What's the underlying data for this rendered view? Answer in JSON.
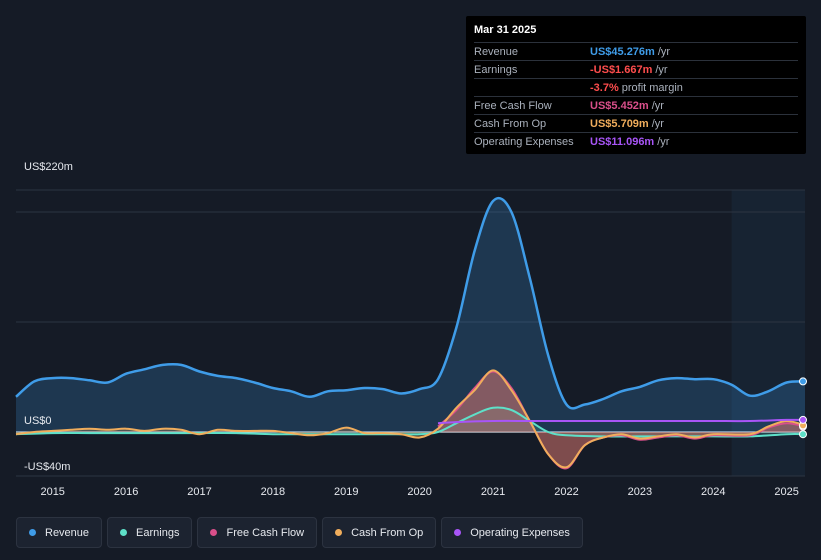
{
  "tooltip": {
    "date": "Mar 31 2025",
    "rows": [
      {
        "name": "Revenue",
        "value": "US$45.276m",
        "unit": "/yr",
        "color": "#3f9ce8"
      },
      {
        "name": "Earnings",
        "value": "-US$1.667m",
        "unit": "/yr",
        "color": "#ff4d4d"
      },
      {
        "name": "",
        "value": "-3.7%",
        "unit": "profit margin",
        "color": "#ff4d4d"
      },
      {
        "name": "Free Cash Flow",
        "value": "US$5.452m",
        "unit": "/yr",
        "color": "#d94f8a"
      },
      {
        "name": "Cash From Op",
        "value": "US$5.709m",
        "unit": "/yr",
        "color": "#f0ad5c"
      },
      {
        "name": "Operating Expenses",
        "value": "US$11.096m",
        "unit": "/yr",
        "color": "#a855f7"
      }
    ]
  },
  "chart_data": {
    "type": "area",
    "title": "",
    "xlabel": "",
    "ylabel": "",
    "y_top_label": "US$220m",
    "y_zero_label": "US$0",
    "y_bottom_label": "-US$40m",
    "ylim": [
      -40,
      220
    ],
    "xlim": [
      2014.5,
      2025.25
    ],
    "x_ticks": [
      "2015",
      "2016",
      "2017",
      "2018",
      "2019",
      "2020",
      "2021",
      "2022",
      "2023",
      "2024",
      "2025"
    ],
    "forecast_start": 2024.25,
    "series": [
      {
        "name": "Revenue",
        "color": "#3f9ce8",
        "points": [
          [
            2014.5,
            32
          ],
          [
            2014.75,
            46
          ],
          [
            2015,
            49
          ],
          [
            2015.25,
            49
          ],
          [
            2015.5,
            47
          ],
          [
            2015.75,
            45
          ],
          [
            2016,
            53
          ],
          [
            2016.25,
            57
          ],
          [
            2016.5,
            61
          ],
          [
            2016.75,
            61
          ],
          [
            2017,
            55
          ],
          [
            2017.25,
            51
          ],
          [
            2017.5,
            49
          ],
          [
            2017.75,
            45
          ],
          [
            2018,
            40
          ],
          [
            2018.25,
            37
          ],
          [
            2018.5,
            32
          ],
          [
            2018.75,
            37
          ],
          [
            2019,
            38
          ],
          [
            2019.25,
            40
          ],
          [
            2019.5,
            39
          ],
          [
            2019.75,
            35
          ],
          [
            2020,
            39
          ],
          [
            2020.25,
            48
          ],
          [
            2020.5,
            95
          ],
          [
            2020.75,
            165
          ],
          [
            2021,
            210
          ],
          [
            2021.25,
            200
          ],
          [
            2021.5,
            140
          ],
          [
            2021.75,
            70
          ],
          [
            2022,
            25
          ],
          [
            2022.25,
            25
          ],
          [
            2022.5,
            30
          ],
          [
            2022.75,
            37
          ],
          [
            2023,
            41
          ],
          [
            2023.25,
            47
          ],
          [
            2023.5,
            49
          ],
          [
            2023.75,
            48
          ],
          [
            2024,
            48
          ],
          [
            2024.25,
            43
          ],
          [
            2024.5,
            33
          ],
          [
            2024.75,
            37
          ],
          [
            2025,
            45
          ],
          [
            2025.25,
            46
          ]
        ]
      },
      {
        "name": "Earnings",
        "color": "#5ee0c8",
        "points": [
          [
            2014.5,
            -2
          ],
          [
            2015,
            -1
          ],
          [
            2015.5,
            -1
          ],
          [
            2016,
            -1
          ],
          [
            2016.5,
            -1
          ],
          [
            2017,
            -1
          ],
          [
            2017.5,
            -1
          ],
          [
            2018,
            -2
          ],
          [
            2018.5,
            -2
          ],
          [
            2019,
            -2
          ],
          [
            2019.5,
            -2
          ],
          [
            2020,
            -2
          ],
          [
            2020.25,
            0
          ],
          [
            2020.5,
            8
          ],
          [
            2020.75,
            16
          ],
          [
            2021,
            22
          ],
          [
            2021.25,
            20
          ],
          [
            2021.5,
            10
          ],
          [
            2021.75,
            0
          ],
          [
            2022,
            -3
          ],
          [
            2022.5,
            -4
          ],
          [
            2023,
            -4
          ],
          [
            2023.5,
            -4
          ],
          [
            2024,
            -4
          ],
          [
            2024.5,
            -4
          ],
          [
            2025,
            -2
          ],
          [
            2025.25,
            -2
          ]
        ]
      },
      {
        "name": "Free Cash Flow",
        "color": "#d94f8a",
        "points": [
          [
            2020.25,
            5
          ],
          [
            2020.5,
            20
          ],
          [
            2020.75,
            40
          ],
          [
            2021,
            55
          ],
          [
            2021.25,
            40
          ],
          [
            2021.5,
            10
          ],
          [
            2021.75,
            -20
          ],
          [
            2022,
            -33
          ],
          [
            2022.25,
            -12
          ],
          [
            2022.5,
            -5
          ],
          [
            2022.75,
            -3
          ],
          [
            2023,
            -7
          ],
          [
            2023.25,
            -5
          ],
          [
            2023.5,
            -3
          ],
          [
            2023.75,
            -6
          ],
          [
            2024,
            -3
          ],
          [
            2024.5,
            -3
          ],
          [
            2024.75,
            4
          ],
          [
            2025,
            8
          ],
          [
            2025.25,
            5
          ]
        ]
      },
      {
        "name": "Cash From Op",
        "color": "#f0ad5c",
        "points": [
          [
            2014.5,
            -2
          ],
          [
            2014.75,
            0
          ],
          [
            2015,
            1
          ],
          [
            2015.25,
            2
          ],
          [
            2015.5,
            3
          ],
          [
            2015.75,
            2
          ],
          [
            2016,
            3
          ],
          [
            2016.25,
            1
          ],
          [
            2016.5,
            3
          ],
          [
            2016.75,
            2
          ],
          [
            2017,
            -2
          ],
          [
            2017.25,
            2
          ],
          [
            2017.5,
            1
          ],
          [
            2017.75,
            1
          ],
          [
            2018,
            1
          ],
          [
            2018.25,
            -1
          ],
          [
            2018.5,
            -3
          ],
          [
            2018.75,
            -1
          ],
          [
            2019,
            4
          ],
          [
            2019.25,
            -1
          ],
          [
            2019.5,
            -1
          ],
          [
            2019.75,
            -2
          ],
          [
            2020,
            -5
          ],
          [
            2020.25,
            3
          ],
          [
            2020.5,
            22
          ],
          [
            2020.75,
            38
          ],
          [
            2021,
            56
          ],
          [
            2021.25,
            38
          ],
          [
            2021.5,
            10
          ],
          [
            2021.75,
            -20
          ],
          [
            2022,
            -32
          ],
          [
            2022.25,
            -12
          ],
          [
            2022.5,
            -5
          ],
          [
            2022.75,
            -2
          ],
          [
            2023,
            -6
          ],
          [
            2023.25,
            -4
          ],
          [
            2023.5,
            -2
          ],
          [
            2023.75,
            -5
          ],
          [
            2024,
            -2
          ],
          [
            2024.5,
            -2
          ],
          [
            2024.75,
            5
          ],
          [
            2025,
            10
          ],
          [
            2025.25,
            6
          ]
        ]
      },
      {
        "name": "Operating Expenses",
        "color": "#a855f7",
        "points": [
          [
            2020.25,
            8
          ],
          [
            2020.5,
            9
          ],
          [
            2021,
            10
          ],
          [
            2021.5,
            10
          ],
          [
            2022,
            10
          ],
          [
            2022.5,
            10
          ],
          [
            2023,
            10
          ],
          [
            2023.5,
            10
          ],
          [
            2024,
            10
          ],
          [
            2024.5,
            10
          ],
          [
            2025,
            11
          ],
          [
            2025.25,
            11
          ]
        ]
      }
    ]
  },
  "legend": [
    {
      "label": "Revenue",
      "color": "#3f9ce8"
    },
    {
      "label": "Earnings",
      "color": "#5ee0c8"
    },
    {
      "label": "Free Cash Flow",
      "color": "#d94f8a"
    },
    {
      "label": "Cash From Op",
      "color": "#f0ad5c"
    },
    {
      "label": "Operating Expenses",
      "color": "#a855f7"
    }
  ]
}
